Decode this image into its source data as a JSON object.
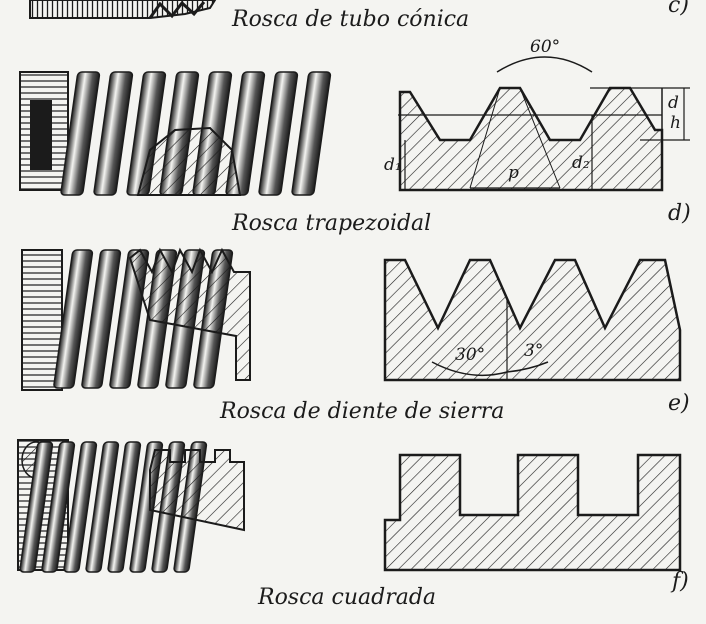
{
  "figure_c": {
    "caption": "Rosca de tubo cónica",
    "letter": "c)"
  },
  "figure_d": {
    "caption": "Rosca trapezoidal",
    "letter": "d)",
    "labels": {
      "angle": "60°",
      "d": "d",
      "h": "h",
      "d1": "d₁",
      "d2": "d₂",
      "p": "p"
    }
  },
  "figure_e": {
    "caption": "Rosca de diente de sierra",
    "letter": "e)",
    "labels": {
      "angle_left": "30°",
      "angle_right": "3°"
    }
  },
  "figure_f": {
    "caption": "Rosca cuadrada",
    "letter": "f)"
  },
  "colors": {
    "ink": "#1b1b1b",
    "paper": "#f4f4f1"
  }
}
